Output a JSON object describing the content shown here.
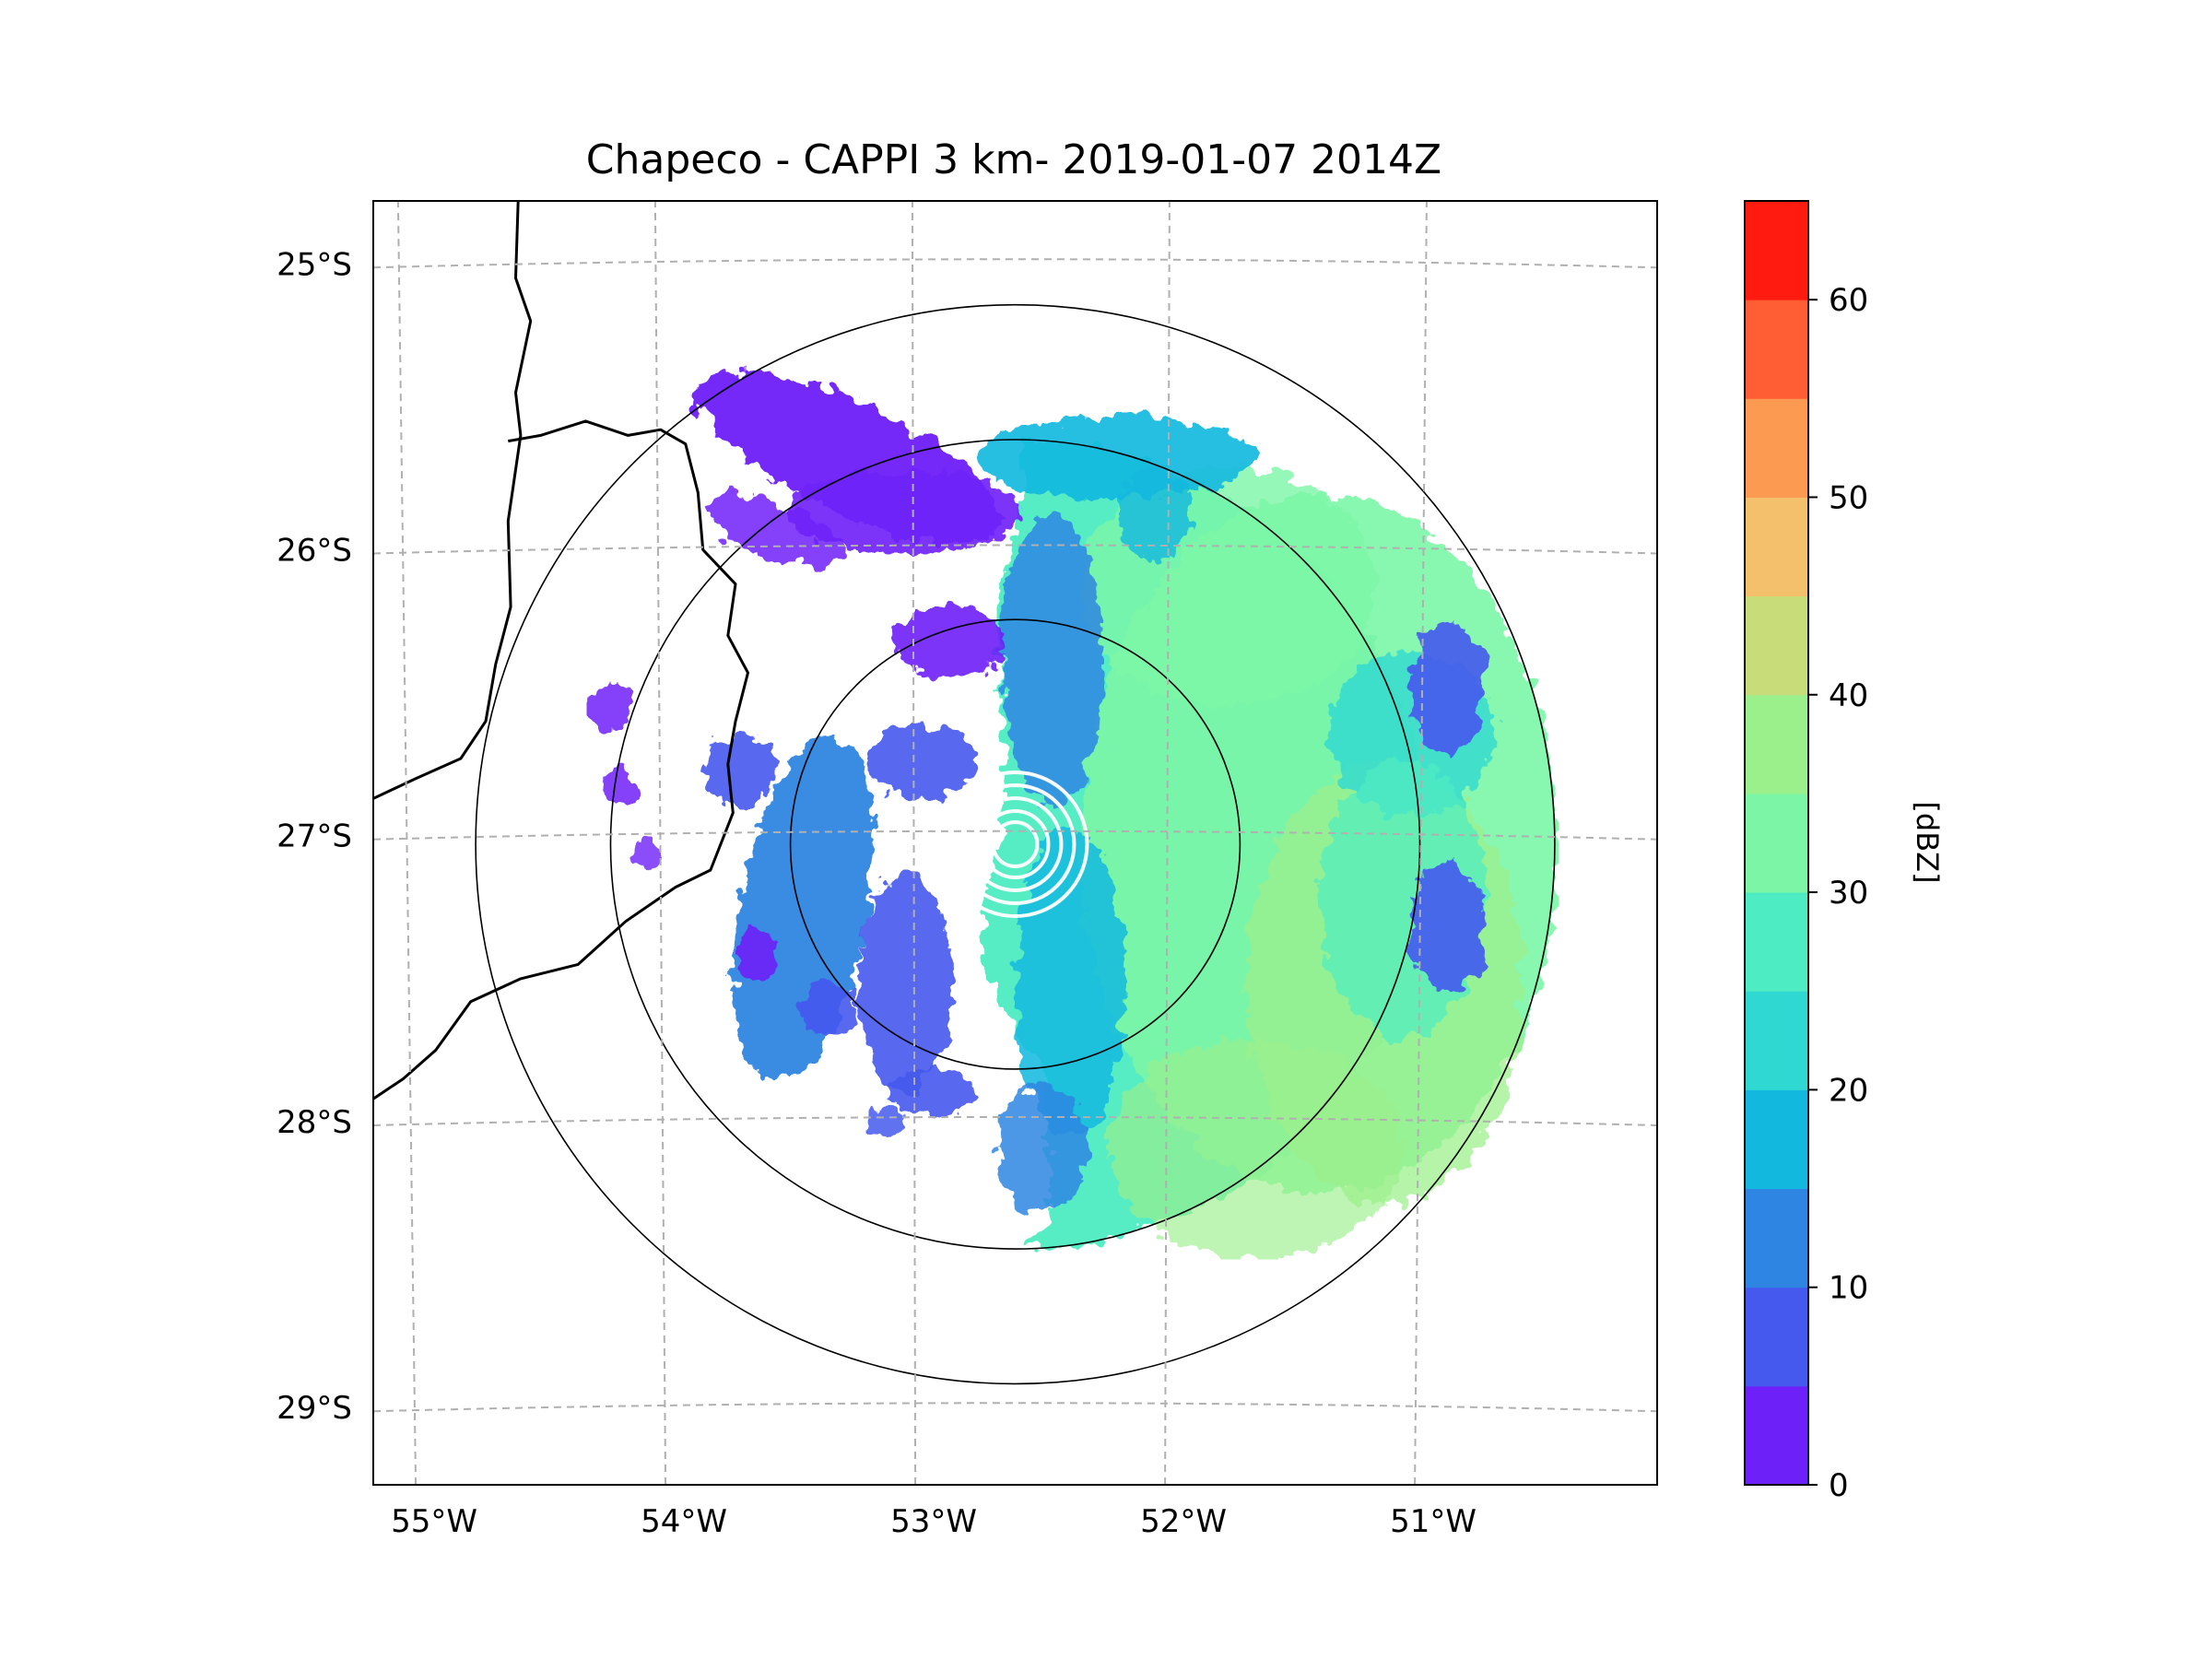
{
  "title": "Chapeco - CAPPI 3 km- 2019-01-07 2014Z",
  "map": {
    "lon_range": [
      -55.17,
      -50.03
    ],
    "lat_range": [
      -29.27,
      -24.78
    ],
    "radar_center": {
      "lon": -52.6,
      "lat": -27.03
    },
    "gridlines": "dashed",
    "range_rings_deg": [
      0.9,
      1.62,
      2.16
    ],
    "lon_ticks": [
      {
        "value": -55,
        "label": "55°W"
      },
      {
        "value": -54,
        "label": "54°W"
      },
      {
        "value": -53,
        "label": "53°W"
      },
      {
        "value": -52,
        "label": "52°W"
      },
      {
        "value": -51,
        "label": "51°W"
      }
    ],
    "lat_ticks": [
      {
        "value": -25,
        "label": "25°S"
      },
      {
        "value": -26,
        "label": "26°S"
      },
      {
        "value": -27,
        "label": "27°S"
      },
      {
        "value": -28,
        "label": "28°S"
      },
      {
        "value": -29,
        "label": "29°S"
      }
    ]
  },
  "colorbar": {
    "label": "[dBZ]",
    "min": 0,
    "max": 65,
    "step": 5,
    "tick_values": [
      0,
      10,
      20,
      30,
      40,
      50,
      60
    ],
    "tick_labels": [
      "0",
      "10",
      "20",
      "30",
      "40",
      "50",
      "60"
    ],
    "colors": [
      "#6e20f8",
      "#4559ee",
      "#2e86e2",
      "#13b8df",
      "#2fd9d2",
      "#4eecc2",
      "#7cf6a6",
      "#9cf08c",
      "#c8dd7a",
      "#f4c06c",
      "#fd9a52",
      "#ff5e35",
      "#ff1b10"
    ]
  }
}
